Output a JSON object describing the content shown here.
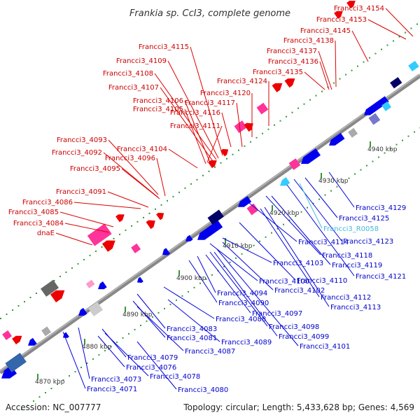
{
  "title": "Frankia sp. CcI3, complete genome",
  "footer": {
    "accession": "Accession: NC_007777",
    "summary": "Topology: circular; Length: 5,433,628 bp; Genes: 4,569"
  },
  "colors": {
    "backbone": "#999999",
    "forward_gene": "#ee0000",
    "forward_gene_alt": "#ff3399",
    "reverse_gene": "#0000ee",
    "rna": "#33ccff",
    "forward_label": "#cc0000",
    "reverse_label": "#0000cc"
  },
  "scale_ticks": [
    "4870 kbp",
    "4880 kbp",
    "4890 kbp",
    "4900 kbp",
    "4910 kbp",
    "4920 kbp",
    "4930 kbp",
    "4940 kbp"
  ],
  "forward_labels": [
    "dnaE",
    "Francci3_4084",
    "Francci3_4085",
    "Francci3_4086",
    "Francci3_4091",
    "Francci3_4095",
    "Francci3_4092",
    "Francci3_4096",
    "Francci3_4093",
    "Francci3_4104",
    "Francci3_4111",
    "Francci3_4105",
    "Francci3_4106",
    "Francci3_4107",
    "Francci3_4108",
    "Francci3_4109",
    "Francci3_4115",
    "Francci3_4116",
    "Francci3_4117",
    "Francci3_4120",
    "Francci3_4124",
    "Francci3_4135",
    "Francci3_4136",
    "Francci3_4137",
    "Francci3_4138",
    "Francci3_4145",
    "Francci3_4153",
    "Francci3_4154"
  ],
  "reverse_labels": [
    "Francci3_4071",
    "Francci3_4073",
    "Francci3_4080",
    "Francci3_4078",
    "Francci3_4076",
    "Francci3_4079",
    "Francci3_4087",
    "Francci3_4081",
    "Francci3_4089",
    "Francci3_4083",
    "Francci3_4088",
    "Francci3_4090",
    "Francci3_4094",
    "Francci3_4097",
    "Francci3_4098",
    "Francci3_4099",
    "Francci3_4101",
    "Francci3_4100",
    "Francci3_4102",
    "Francci3_4103",
    "Francci3_4110",
    "Francci3_4112",
    "Francci3_4113",
    "Francci3_4114",
    "Francci3_4118",
    "Francci3_4119",
    "Francci3_4121",
    "Francci3_4123",
    "Francci3_4125",
    "Francci3_4129"
  ],
  "rna_labels": [
    "Francci3_R0058"
  ]
}
